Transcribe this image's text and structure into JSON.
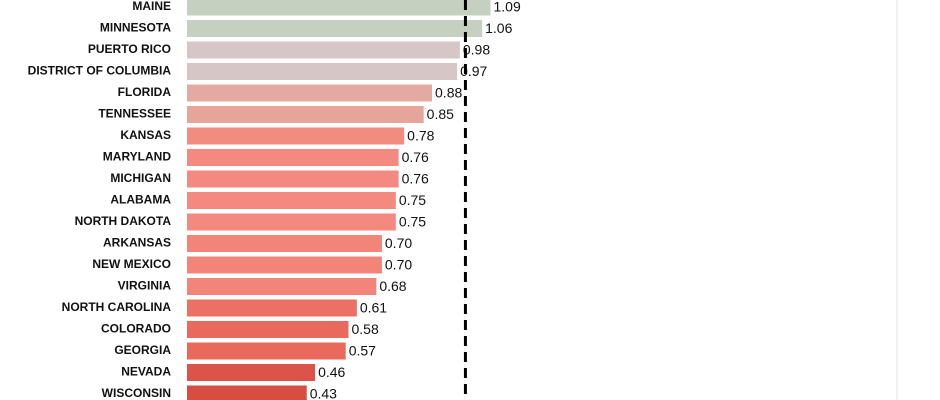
{
  "chart_data": {
    "type": "bar",
    "orientation": "horizontal",
    "categories": [
      "MAINE",
      "MINNESOTA",
      "PUERTO RICO",
      "DISTRICT OF COLUMBIA",
      "FLORIDA",
      "TENNESSEE",
      "KANSAS",
      "MARYLAND",
      "MICHIGAN",
      "ALABAMA",
      "NORTH DAKOTA",
      "ARKANSAS",
      "NEW MEXICO",
      "VIRGINIA",
      "NORTH CAROLINA",
      "COLORADO",
      "GEORGIA",
      "NEVADA",
      "WISCONSIN"
    ],
    "values": [
      1.09,
      1.06,
      0.98,
      0.97,
      0.88,
      0.85,
      0.78,
      0.76,
      0.76,
      0.75,
      0.75,
      0.7,
      0.7,
      0.68,
      0.61,
      0.58,
      0.57,
      0.46,
      0.43
    ],
    "value_labels": [
      "1.09",
      "1.06",
      "0.98",
      "0.97",
      "0.88",
      "0.85",
      "0.78",
      "0.76",
      "0.76",
      "0.75",
      "0.75",
      "0.70",
      "0.70",
      "0.68",
      "0.61",
      "0.58",
      "0.57",
      "0.46",
      "0.43"
    ],
    "colors": [
      "#c6d0c0",
      "#c6d0c0",
      "#d6c6c6",
      "#d6c6c6",
      "#e4aaa1",
      "#e6a59b",
      "#f28b80",
      "#f48a7f",
      "#f48a7f",
      "#f48a7f",
      "#f48a7f",
      "#f28479",
      "#f28479",
      "#f28479",
      "#ec7063",
      "#e9695c",
      "#e9695c",
      "#dc5449",
      "#d74d41"
    ],
    "xlim": [
      0,
      2.55
    ],
    "reference_line": 1
  }
}
